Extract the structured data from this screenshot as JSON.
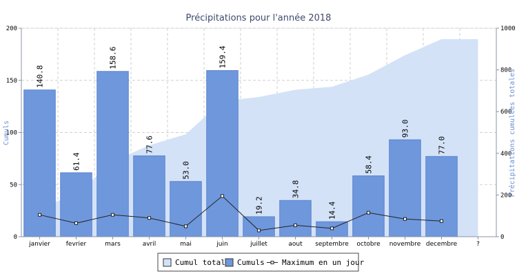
{
  "chart_data": {
    "type": "bar",
    "title": "Précipitations pour l'année 2018",
    "ylabel_left": "Cumuls",
    "ylabel_right": "Précipitations cumulées totales",
    "ylim_left": [
      0,
      200
    ],
    "ylim_right": [
      0,
      1000
    ],
    "yticks_left": [
      0,
      50,
      100,
      150,
      200
    ],
    "yticks_right": [
      0,
      200,
      400,
      600,
      800,
      1000
    ],
    "grid": true,
    "legend_position": "bottom-center",
    "categories": [
      "janvier",
      "fevrier",
      "mars",
      "avril",
      "mai",
      "juin",
      "juillet",
      "aout",
      "septembre",
      "octobre",
      "novembre",
      "decembre",
      "?"
    ],
    "series": [
      {
        "name": "Cumuls",
        "type": "bar",
        "axis": "left",
        "values": [
          140.8,
          61.4,
          158.6,
          77.6,
          53.0,
          159.4,
          19.2,
          34.8,
          14.4,
          58.4,
          93.0,
          77.0,
          null
        ],
        "labels": [
          "140.8",
          "61.4",
          "158.6",
          "77.6",
          "53.0",
          "159.4",
          "19.2",
          "34.8",
          "14.4",
          "58.4",
          "93.0",
          "77.0",
          ""
        ]
      },
      {
        "name": "Cumul total",
        "type": "area",
        "axis": "right",
        "values": [
          140.8,
          202.2,
          360.8,
          438.4,
          491.4,
          650.8,
          670.0,
          704.8,
          719.2,
          777.6,
          870.6,
          947.6,
          947.6
        ]
      },
      {
        "name": "Maximum en un jour",
        "type": "line",
        "axis": "left",
        "values": [
          21,
          13,
          21,
          18,
          10,
          39,
          6,
          11,
          8,
          23,
          17,
          15,
          null
        ]
      }
    ],
    "colors": {
      "bar_fill": "#6f97dc",
      "bar_edge": "#5d86cf",
      "area_fill": "#d4e2f8",
      "line": "#222222",
      "axis": "#8a93a8",
      "left_axis_label": "#6b8fd0",
      "title": "#3d4a6b",
      "grid": "#cfcfcf"
    }
  },
  "legend": {
    "items": [
      {
        "label": "Cumul total",
        "swatch": "area"
      },
      {
        "label": "Cumuls",
        "swatch": "bar"
      },
      {
        "label": "Maximum en un jour",
        "swatch": "line"
      }
    ]
  }
}
